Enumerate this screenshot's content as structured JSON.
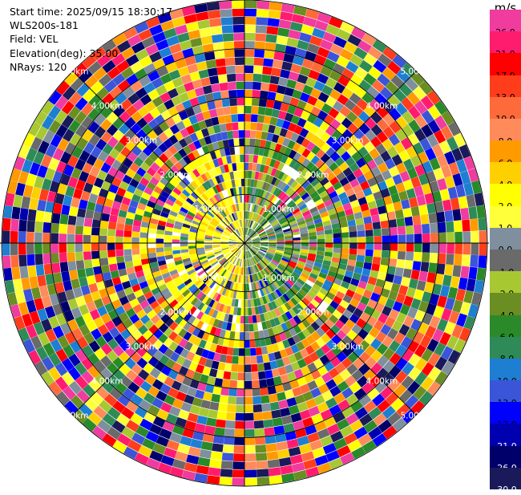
{
  "header": {
    "start_time": "Start time: 2025/09/15 18:30:17",
    "instrument": "WLS200s-181",
    "field": "Field: VEL",
    "elevation": "Elevation(deg): 35.00",
    "nrays": "NRays: 120"
  },
  "colorbar": {
    "unit": "m/s",
    "bins": [
      {
        "label": "26.0",
        "color": "#f03c9e",
        "text": "#000000"
      },
      {
        "label": "21.0",
        "color": "#ff1c6e",
        "text": "#000000"
      },
      {
        "label": "17.0",
        "color": "#ff0000",
        "text": "#000000"
      },
      {
        "label": "13.0",
        "color": "#ff3d1a",
        "text": "#000000"
      },
      {
        "label": "10.0",
        "color": "#ff6a3a",
        "text": "#000000"
      },
      {
        "label": "8.0",
        "color": "#ff8a5a",
        "text": "#000000"
      },
      {
        "label": "6.0",
        "color": "#ff9a00",
        "text": "#000000"
      },
      {
        "label": "4.0",
        "color": "#ffd000",
        "text": "#000000"
      },
      {
        "label": "2.0",
        "color": "#ffff00",
        "text": "#000000"
      },
      {
        "label": "1.0",
        "color": "#ffff3a",
        "text": "#000000"
      },
      {
        "label": "0.0",
        "color": "#7f8f9e",
        "text": "#000000"
      },
      {
        "label": "-1.0",
        "color": "#6a6a6a",
        "text": "#000000"
      },
      {
        "label": "-2.0",
        "color": "#a8c832",
        "text": "#000000"
      },
      {
        "label": "-4.0",
        "color": "#6b8e23",
        "text": "#000000"
      },
      {
        "label": "-6.0",
        "color": "#2a8a2a",
        "text": "#000000"
      },
      {
        "label": "-8.0",
        "color": "#2e8b57",
        "text": "#000000"
      },
      {
        "label": "-10.0",
        "color": "#1e7ed2",
        "text": "#000000"
      },
      {
        "label": "-13.0",
        "color": "#3a55d8",
        "text": "#000000"
      },
      {
        "label": "-17.0",
        "color": "#0000ff",
        "text": "#000000"
      },
      {
        "label": "-21.0",
        "color": "#0000b0",
        "text": "#ffffff"
      },
      {
        "label": "-26.0",
        "color": "#00006a",
        "text": "#ffffff"
      },
      {
        "label": "-30.0",
        "color": "#1a1a5a",
        "text": "#ffffff"
      }
    ]
  },
  "chart_data": {
    "type": "heatmap",
    "projection": "ppi",
    "nrays": 120,
    "gates": 30,
    "max_range_km": 5.0,
    "range_ring_labels": [
      {
        "ring_km": 1.0,
        "labels": [
          "1.00km",
          "1.00km",
          "1.00km",
          "1.00km"
        ]
      },
      {
        "ring_km": 2.0,
        "labels": [
          "2.00km",
          "2.00km",
          "2.00km",
          "2.00km"
        ]
      },
      {
        "ring_km": 3.0,
        "labels": [
          "3.00km",
          "3.00km",
          "3.00km",
          "3.00km"
        ]
      },
      {
        "ring_km": 4.0,
        "labels": [
          "4.00km",
          "4.00km",
          "4.00km",
          "4.00km"
        ]
      },
      {
        "ring_km": 5.0,
        "labels": [
          "5.00km",
          "5.00km",
          "5.00km",
          "5.00km"
        ]
      }
    ],
    "field": "VEL",
    "units": "m/s",
    "color_levels": [
      -30,
      -26,
      -21,
      -17,
      -13,
      -10,
      -8,
      -6,
      -4,
      -2,
      -1,
      0,
      1,
      2,
      4,
      6,
      8,
      10,
      13,
      17,
      21,
      26
    ],
    "spoke_azimuths_deg": [
      0,
      45,
      90,
      135,
      180,
      225,
      270,
      315
    ]
  }
}
